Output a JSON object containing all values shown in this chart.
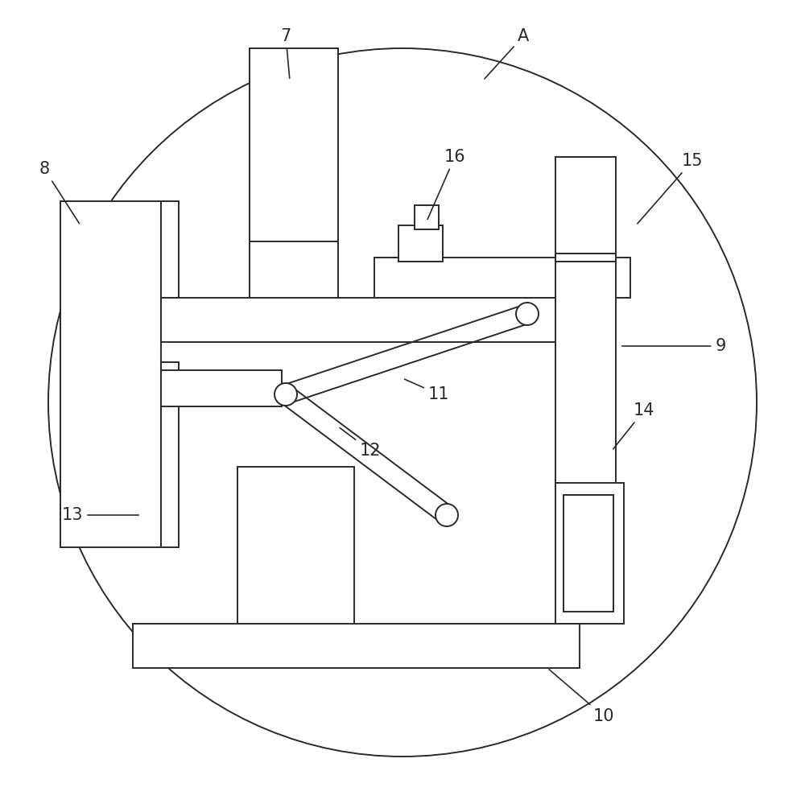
{
  "bg_color": "#ffffff",
  "line_color": "#2a2a2a",
  "fig_w": 10.0,
  "fig_h": 9.99,
  "dpi": 100,
  "lw": 1.4,
  "label_fontsize": 15
}
